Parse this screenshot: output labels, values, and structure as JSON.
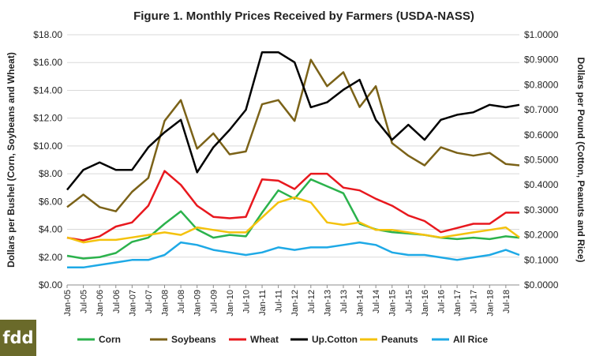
{
  "logo": {
    "text": "fdd",
    "bg_color": "#6a6a2a"
  },
  "chart_data": {
    "type": "line",
    "title": "Figure 1. Monthly Prices Received by Farmers (USDA-NASS)",
    "ylabel_left": "Dollars per Bushel (Corn, Soybeans and Wheat)",
    "ylabel_right": "Dollars per Pound (Cotton, Peanuts and Rice)",
    "xlabel": "",
    "ylim_left": [
      0,
      18
    ],
    "ylim_right": [
      0,
      1
    ],
    "yticks_left": [
      "$0.00",
      "$2.00",
      "$4.00",
      "$6.00",
      "$8.00",
      "$10.00",
      "$12.00",
      "$14.00",
      "$16.00",
      "$18.00"
    ],
    "yticks_right": [
      "$0.0000",
      "$0.1000",
      "$0.2000",
      "$0.3000",
      "$0.4000",
      "$0.5000",
      "$0.6000",
      "$0.7000",
      "$0.8000",
      "$0.9000",
      "$1.0000"
    ],
    "x_start": "Jan-05",
    "x_end": "Dec-18",
    "xticks": [
      "Jan-05",
      "Jul-05",
      "Jan-06",
      "Jul-06",
      "Jan-07",
      "Jul-07",
      "Jan-08",
      "Jul-08",
      "Jan-09",
      "Jul-09",
      "Jan-10",
      "Jul-10",
      "Jan-11",
      "Jul-11",
      "Jan-12",
      "Jul-12",
      "Jan-13",
      "Jul-13",
      "Jan-14",
      "Jul-14",
      "Jan-15",
      "Jul-15",
      "Jan-16",
      "Jul-16",
      "Jan-17",
      "Jul-17",
      "Jan-18",
      "Jul-18"
    ],
    "grid": true,
    "legend_position": "bottom",
    "series": [
      {
        "name": "Corn",
        "axis": "left",
        "color": "#2bb24c",
        "x": [
          "Jan-05",
          "Jul-05",
          "Jan-06",
          "Jul-06",
          "Jan-07",
          "Jul-07",
          "Jan-08",
          "Jul-08",
          "Jan-09",
          "Jul-09",
          "Jan-10",
          "Jul-10",
          "Jan-11",
          "Jul-11",
          "Jan-12",
          "Jul-12",
          "Jan-13",
          "Jul-13",
          "Jan-14",
          "Jul-14",
          "Jan-15",
          "Jul-15",
          "Jan-16",
          "Jul-16",
          "Jan-17",
          "Jul-17",
          "Jan-18",
          "Jul-18",
          "Dec-18"
        ],
        "values": [
          2.1,
          1.9,
          2.0,
          2.3,
          3.1,
          3.4,
          4.4,
          5.3,
          4.0,
          3.4,
          3.6,
          3.5,
          5.2,
          6.8,
          6.2,
          7.6,
          7.1,
          6.6,
          4.4,
          4.0,
          3.8,
          3.7,
          3.6,
          3.4,
          3.3,
          3.4,
          3.3,
          3.5,
          3.4
        ]
      },
      {
        "name": "Soybeans",
        "axis": "left",
        "color": "#7b6218",
        "x": [
          "Jan-05",
          "Jul-05",
          "Jan-06",
          "Jul-06",
          "Jan-07",
          "Jul-07",
          "Jan-08",
          "Jul-08",
          "Jan-09",
          "Jul-09",
          "Jan-10",
          "Jul-10",
          "Jan-11",
          "Jul-11",
          "Jan-12",
          "Jul-12",
          "Jan-13",
          "Jul-13",
          "Jan-14",
          "Jul-14",
          "Jan-15",
          "Jul-15",
          "Jan-16",
          "Jul-16",
          "Jan-17",
          "Jul-17",
          "Jan-18",
          "Jul-18",
          "Dec-18"
        ],
        "values": [
          5.6,
          6.5,
          5.6,
          5.3,
          6.7,
          7.7,
          11.8,
          13.3,
          9.8,
          10.9,
          9.4,
          9.6,
          13.0,
          13.3,
          11.8,
          16.2,
          14.3,
          15.3,
          12.8,
          14.3,
          10.2,
          9.3,
          8.6,
          9.9,
          9.5,
          9.3,
          9.5,
          8.7,
          8.6
        ]
      },
      {
        "name": "Wheat",
        "axis": "left",
        "color": "#e8181e",
        "x": [
          "Jan-05",
          "Jul-05",
          "Jan-06",
          "Jul-06",
          "Jan-07",
          "Jul-07",
          "Jan-08",
          "Jul-08",
          "Jan-09",
          "Jul-09",
          "Jan-10",
          "Jul-10",
          "Jan-11",
          "Jul-11",
          "Jan-12",
          "Jul-12",
          "Jan-13",
          "Jul-13",
          "Jan-14",
          "Jul-14",
          "Jan-15",
          "Jul-15",
          "Jan-16",
          "Jul-16",
          "Jan-17",
          "Jul-17",
          "Jan-18",
          "Jul-18",
          "Dec-18"
        ],
        "values": [
          3.4,
          3.2,
          3.5,
          4.2,
          4.5,
          5.7,
          8.2,
          7.2,
          5.7,
          4.9,
          4.8,
          4.9,
          7.6,
          7.5,
          6.9,
          8.0,
          8.0,
          7.0,
          6.8,
          6.2,
          5.7,
          5.0,
          4.6,
          3.8,
          4.1,
          4.4,
          4.4,
          5.2,
          5.2
        ]
      },
      {
        "name": "Up.Cotton",
        "axis": "right",
        "color": "#000000",
        "x": [
          "Jan-05",
          "Jul-05",
          "Jan-06",
          "Jul-06",
          "Jan-07",
          "Jul-07",
          "Jan-08",
          "Jul-08",
          "Jan-09",
          "Jul-09",
          "Jan-10",
          "Jul-10",
          "Jan-11",
          "Jul-11",
          "Jan-12",
          "Jul-12",
          "Jan-13",
          "Jul-13",
          "Jan-14",
          "Jul-14",
          "Jan-15",
          "Jul-15",
          "Jan-16",
          "Jul-16",
          "Jan-17",
          "Jul-17",
          "Jan-18",
          "Jul-18",
          "Dec-18"
        ],
        "values": [
          0.38,
          0.46,
          0.49,
          0.46,
          0.46,
          0.55,
          0.61,
          0.66,
          0.45,
          0.55,
          0.62,
          0.7,
          0.93,
          0.93,
          0.89,
          0.71,
          0.73,
          0.78,
          0.82,
          0.66,
          0.58,
          0.64,
          0.58,
          0.66,
          0.68,
          0.69,
          0.72,
          0.71,
          0.72
        ]
      },
      {
        "name": "Peanuts",
        "axis": "right",
        "color": "#f4c20d",
        "x": [
          "Jan-05",
          "Jul-05",
          "Jan-06",
          "Jul-06",
          "Jan-07",
          "Jul-07",
          "Jan-08",
          "Jul-08",
          "Jan-09",
          "Jul-09",
          "Jan-10",
          "Jul-10",
          "Jan-11",
          "Jul-11",
          "Jan-12",
          "Jul-12",
          "Jan-13",
          "Jul-13",
          "Jan-14",
          "Jul-14",
          "Jan-15",
          "Jul-15",
          "Jan-16",
          "Jul-16",
          "Jan-17",
          "Jul-17",
          "Jan-18",
          "Jul-18",
          "Dec-18"
        ],
        "values": [
          0.19,
          0.17,
          0.18,
          0.18,
          0.19,
          0.2,
          0.21,
          0.2,
          0.23,
          0.22,
          0.21,
          0.21,
          0.27,
          0.33,
          0.35,
          0.33,
          0.25,
          0.24,
          0.25,
          0.22,
          0.22,
          0.21,
          0.2,
          0.19,
          0.2,
          0.21,
          0.22,
          0.23,
          0.19
        ]
      },
      {
        "name": "All Rice",
        "axis": "right",
        "color": "#1ea9e6",
        "x": [
          "Jan-05",
          "Jul-05",
          "Jan-06",
          "Jul-06",
          "Jan-07",
          "Jul-07",
          "Jan-08",
          "Jul-08",
          "Jan-09",
          "Jul-09",
          "Jan-10",
          "Jul-10",
          "Jan-11",
          "Jul-11",
          "Jan-12",
          "Jul-12",
          "Jan-13",
          "Jul-13",
          "Jan-14",
          "Jul-14",
          "Jan-15",
          "Jul-15",
          "Jan-16",
          "Jul-16",
          "Jan-17",
          "Jul-17",
          "Jan-18",
          "Jul-18",
          "Dec-18"
        ],
        "values": [
          0.07,
          0.07,
          0.08,
          0.09,
          0.1,
          0.1,
          0.12,
          0.17,
          0.16,
          0.14,
          0.13,
          0.12,
          0.13,
          0.15,
          0.14,
          0.15,
          0.15,
          0.16,
          0.17,
          0.16,
          0.13,
          0.12,
          0.12,
          0.11,
          0.1,
          0.11,
          0.12,
          0.14,
          0.12
        ]
      }
    ]
  }
}
